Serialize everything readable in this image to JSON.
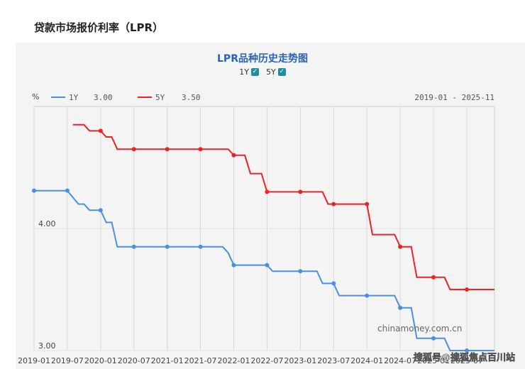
{
  "page": {
    "title": "贷款市场报价利率（LPR）"
  },
  "toggles": [
    {
      "label": "1Y",
      "checked": true
    },
    {
      "label": "5Y",
      "checked": true
    }
  ],
  "watermark": "chinamoney.com.cn",
  "overlay_watermark": "搜狐号@搜狐焦点百川站",
  "colors": {
    "series_1y": "#4a90e2",
    "series_5y": "#ee2222",
    "grid": "#d8d8d8"
  },
  "chart_data": {
    "type": "line",
    "title": "LPR品种历史走势图",
    "ylabel": "%",
    "range_label": "2019-01 - 2025-11",
    "ylim": [
      3.0,
      5.0
    ],
    "yticks": [
      {
        "value": 3.0,
        "label": "3.00"
      },
      {
        "value": 4.0,
        "label": "4.00"
      }
    ],
    "xlim": [
      0,
      83
    ],
    "xticks": [
      {
        "value": 0,
        "label": "2019-01"
      },
      {
        "value": 6,
        "label": "2019-07"
      },
      {
        "value": 12,
        "label": "2020-01"
      },
      {
        "value": 18,
        "label": "2020-07"
      },
      {
        "value": 24,
        "label": "2021-01"
      },
      {
        "value": 30,
        "label": "2021-07"
      },
      {
        "value": 36,
        "label": "2022-01"
      },
      {
        "value": 42,
        "label": "2022-07"
      },
      {
        "value": 48,
        "label": "2023-01"
      },
      {
        "value": 54,
        "label": "2023-07"
      },
      {
        "value": 60,
        "label": "2024-01"
      },
      {
        "value": 66,
        "label": "2024-07"
      },
      {
        "value": 72,
        "label": "2025-01"
      },
      {
        "value": 78,
        "label": "2025-07"
      }
    ],
    "legend_position": "top-left",
    "grid": true,
    "series": [
      {
        "name": "1Y",
        "current": "3.00",
        "x": [
          0,
          6,
          8,
          9,
          10,
          12,
          13,
          14,
          15,
          18,
          24,
          30,
          34,
          35,
          36,
          42,
          43,
          48,
          51,
          52,
          53,
          54,
          55,
          60,
          65,
          66,
          67,
          68,
          69,
          72,
          73,
          74,
          75,
          78,
          83
        ],
        "y": [
          4.31,
          4.31,
          4.2,
          4.2,
          4.15,
          4.15,
          4.05,
          4.05,
          3.85,
          3.85,
          3.85,
          3.85,
          3.85,
          3.8,
          3.7,
          3.7,
          3.65,
          3.65,
          3.65,
          3.55,
          3.55,
          3.55,
          3.45,
          3.45,
          3.45,
          3.35,
          3.35,
          3.35,
          3.1,
          3.1,
          3.1,
          3.1,
          3.0,
          3.0,
          3.0
        ]
      },
      {
        "name": "5Y",
        "current": "3.50",
        "x": [
          7,
          9,
          10,
          12,
          13,
          14,
          15,
          18,
          24,
          30,
          35,
          36,
          38,
          39,
          40,
          41,
          42,
          48,
          52,
          53,
          54,
          60,
          61,
          65,
          66,
          67,
          68,
          69,
          72,
          73,
          74,
          75,
          78,
          83
        ],
        "y": [
          4.85,
          4.85,
          4.8,
          4.8,
          4.75,
          4.75,
          4.65,
          4.65,
          4.65,
          4.65,
          4.65,
          4.6,
          4.6,
          4.45,
          4.45,
          4.45,
          4.3,
          4.3,
          4.3,
          4.2,
          4.2,
          4.2,
          3.95,
          3.95,
          3.85,
          3.85,
          3.85,
          3.6,
          3.6,
          3.6,
          3.6,
          3.5,
          3.5,
          3.5
        ]
      }
    ]
  }
}
